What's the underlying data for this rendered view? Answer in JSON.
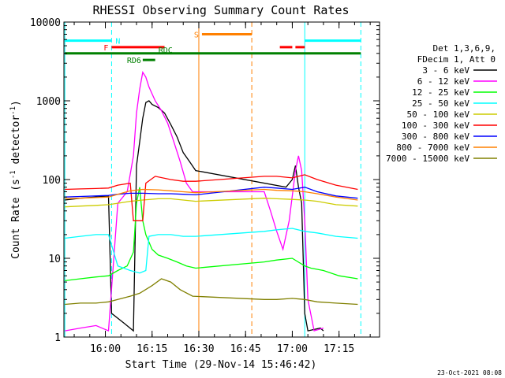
{
  "title": "RHESSI Observing Summary Count Rates",
  "footer_date": "23-Oct-2021 08:08",
  "chart_data": {
    "type": "line",
    "title": "RHESSI Observing Summary Count Rates",
    "xlabel": "Start Time (29-Nov-14 15:46:42)",
    "ylabel": "Count Rate (s",
    "ylabel_sup": "-1",
    "ylabel_tail": " detector",
    "ylabel_close": ")",
    "yscale": "log",
    "ylim": [
      1,
      10000
    ],
    "xlim": [
      "15:46:42",
      "17:28:00"
    ],
    "xticks": [
      "16:00",
      "16:15",
      "16:30",
      "16:45",
      "17:00",
      "17:15"
    ],
    "yticks": [
      "1",
      "10",
      "100",
      "1000",
      "10000"
    ],
    "legend_header": [
      "Det 1,3,6,9,",
      "FDecim 1, Att 0"
    ],
    "legend_position": "right",
    "series": [
      {
        "name": "3 - 6 keV",
        "color": "#000000",
        "points": [
          [
            "15:47",
            55
          ],
          [
            "15:52",
            58
          ],
          [
            "15:57",
            60
          ],
          [
            "16:01",
            62
          ],
          [
            "16:02",
            2
          ],
          [
            "16:06",
            1.5
          ],
          [
            "16:09",
            1.2
          ],
          [
            "16:10",
            150
          ],
          [
            "16:11",
            300
          ],
          [
            "16:12",
            600
          ],
          [
            "16:13",
            950
          ],
          [
            "16:14",
            1000
          ],
          [
            "16:15",
            900
          ],
          [
            "16:17",
            820
          ],
          [
            "16:19",
            700
          ],
          [
            "16:21",
            500
          ],
          [
            "16:23",
            350
          ],
          [
            "16:25",
            220
          ],
          [
            "16:27",
            170
          ],
          [
            "16:29",
            130
          ],
          [
            "16:58",
            80
          ],
          [
            "17:00",
            100
          ],
          [
            "17:01",
            150
          ],
          [
            "17:02",
            80
          ],
          [
            "17:03",
            50
          ],
          [
            "17:04",
            2
          ],
          [
            "17:05",
            1.2
          ],
          [
            "17:09",
            1.3
          ],
          [
            "17:10",
            1.2
          ]
        ]
      },
      {
        "name": "6 - 12 keV",
        "color": "#ff00ff",
        "points": [
          [
            "15:47",
            1.2
          ],
          [
            "15:52",
            1.3
          ],
          [
            "15:57",
            1.4
          ],
          [
            "16:01",
            1.2
          ],
          [
            "16:04",
            50
          ],
          [
            "16:07",
            70
          ],
          [
            "16:09",
            200
          ],
          [
            "16:10",
            700
          ],
          [
            "16:11",
            1400
          ],
          [
            "16:12",
            2300
          ],
          [
            "16:13",
            2000
          ],
          [
            "16:14",
            1500
          ],
          [
            "16:16",
            1000
          ],
          [
            "16:18",
            750
          ],
          [
            "16:20",
            520
          ],
          [
            "16:22",
            300
          ],
          [
            "16:24",
            170
          ],
          [
            "16:26",
            90
          ],
          [
            "16:28",
            70
          ],
          [
            "16:51",
            70
          ],
          [
            "16:53",
            40
          ],
          [
            "16:55",
            22
          ],
          [
            "16:57",
            13
          ],
          [
            "16:59",
            30
          ],
          [
            "17:01",
            130
          ],
          [
            "17:02",
            200
          ],
          [
            "17:03",
            130
          ],
          [
            "17:04",
            30
          ],
          [
            "17:05",
            3
          ],
          [
            "17:07",
            1.2
          ],
          [
            "17:10",
            1.3
          ]
        ]
      },
      {
        "name": "12 - 25 keV",
        "color": "#00ff00",
        "points": [
          [
            "15:47",
            5.2
          ],
          [
            "15:52",
            5.5
          ],
          [
            "15:57",
            5.8
          ],
          [
            "16:01",
            6
          ],
          [
            "16:04",
            7
          ],
          [
            "16:07",
            8
          ],
          [
            "16:09",
            12
          ],
          [
            "16:10",
            50
          ],
          [
            "16:11",
            80
          ],
          [
            "16:12",
            30
          ],
          [
            "16:13",
            20
          ],
          [
            "16:15",
            13
          ],
          [
            "16:17",
            11
          ],
          [
            "16:20",
            10
          ],
          [
            "16:23",
            9
          ],
          [
            "16:26",
            8
          ],
          [
            "16:29",
            7.5
          ],
          [
            "16:51",
            9
          ],
          [
            "16:55",
            9.5
          ],
          [
            "17:00",
            10
          ],
          [
            "17:04",
            8
          ],
          [
            "17:06",
            7.5
          ],
          [
            "17:10",
            7
          ],
          [
            "17:15",
            6
          ],
          [
            "17:21",
            5.5
          ]
        ]
      },
      {
        "name": "25 - 50 keV",
        "color": "#00ffff",
        "points": [
          [
            "15:47",
            18
          ],
          [
            "15:52",
            19
          ],
          [
            "15:57",
            20
          ],
          [
            "16:01",
            20
          ],
          [
            "16:04",
            8
          ],
          [
            "16:08",
            7
          ],
          [
            "16:11",
            6.5
          ],
          [
            "16:13",
            7
          ],
          [
            "16:14",
            19
          ],
          [
            "16:17",
            20
          ],
          [
            "16:21",
            20
          ],
          [
            "16:25",
            19
          ],
          [
            "16:29",
            19
          ],
          [
            "16:51",
            22
          ],
          [
            "16:55",
            23
          ],
          [
            "17:00",
            24
          ],
          [
            "17:04",
            22
          ],
          [
            "17:08",
            21
          ],
          [
            "17:14",
            19
          ],
          [
            "17:21",
            18
          ]
        ]
      },
      {
        "name": "50 - 100 keV",
        "color": "#cccc00",
        "points": [
          [
            "15:47",
            45
          ],
          [
            "15:52",
            46
          ],
          [
            "15:57",
            47
          ],
          [
            "16:01",
            48
          ],
          [
            "16:04",
            50
          ],
          [
            "16:08",
            53
          ],
          [
            "16:12",
            55
          ],
          [
            "16:17",
            57
          ],
          [
            "16:21",
            57
          ],
          [
            "16:25",
            55
          ],
          [
            "16:29",
            53
          ],
          [
            "16:51",
            58
          ],
          [
            "16:55",
            57
          ],
          [
            "17:00",
            56
          ],
          [
            "17:04",
            55
          ],
          [
            "17:08",
            53
          ],
          [
            "17:14",
            48
          ],
          [
            "17:21",
            46
          ]
        ]
      },
      {
        "name": "100 - 300 keV",
        "color": "#ff0000",
        "points": [
          [
            "15:47",
            75
          ],
          [
            "15:52",
            76
          ],
          [
            "15:57",
            77
          ],
          [
            "16:01",
            78
          ],
          [
            "16:04",
            85
          ],
          [
            "16:08",
            90
          ],
          [
            "16:09",
            30
          ],
          [
            "16:12",
            30
          ],
          [
            "16:13",
            90
          ],
          [
            "16:16",
            110
          ],
          [
            "16:21",
            100
          ],
          [
            "16:25",
            95
          ],
          [
            "16:29",
            95
          ],
          [
            "16:51",
            110
          ],
          [
            "16:55",
            110
          ],
          [
            "17:00",
            105
          ],
          [
            "17:04",
            115
          ],
          [
            "17:08",
            100
          ],
          [
            "17:14",
            85
          ],
          [
            "17:21",
            75
          ]
        ]
      },
      {
        "name": "300 - 800 keV",
        "color": "#0000ff",
        "points": [
          [
            "15:47",
            60
          ],
          [
            "15:52",
            61
          ],
          [
            "15:57",
            62
          ],
          [
            "16:01",
            63
          ],
          [
            "16:04",
            65
          ],
          [
            "16:08",
            67
          ],
          [
            "16:12",
            67
          ],
          [
            "16:17",
            66
          ],
          [
            "16:21",
            66
          ],
          [
            "16:25",
            65
          ],
          [
            "16:29",
            64
          ],
          [
            "16:51",
            80
          ],
          [
            "16:55",
            78
          ],
          [
            "17:00",
            75
          ],
          [
            "17:04",
            80
          ],
          [
            "17:08",
            70
          ],
          [
            "17:14",
            62
          ],
          [
            "17:21",
            58
          ]
        ]
      },
      {
        "name": "800 - 7000 keV",
        "color": "#ff8000",
        "points": [
          [
            "15:47",
            57
          ],
          [
            "15:52",
            58
          ],
          [
            "15:57",
            59
          ],
          [
            "16:01",
            60
          ],
          [
            "16:04",
            65
          ],
          [
            "16:08",
            72
          ],
          [
            "16:12",
            75
          ],
          [
            "16:17",
            74
          ],
          [
            "16:21",
            72
          ],
          [
            "16:25",
            70
          ],
          [
            "16:29",
            68
          ],
          [
            "16:51",
            75
          ],
          [
            "16:55",
            73
          ],
          [
            "17:00",
            72
          ],
          [
            "17:04",
            70
          ],
          [
            "17:08",
            66
          ],
          [
            "17:14",
            60
          ],
          [
            "17:21",
            55
          ]
        ]
      },
      {
        "name": "7000 - 15000 keV",
        "color": "#808000",
        "points": [
          [
            "15:47",
            2.6
          ],
          [
            "15:52",
            2.7
          ],
          [
            "15:57",
            2.7
          ],
          [
            "16:01",
            2.8
          ],
          [
            "16:04",
            3
          ],
          [
            "16:08",
            3.3
          ],
          [
            "16:11",
            3.6
          ],
          [
            "16:15",
            4.5
          ],
          [
            "16:18",
            5.5
          ],
          [
            "16:21",
            5
          ],
          [
            "16:24",
            4
          ],
          [
            "16:28",
            3.3
          ],
          [
            "16:51",
            3
          ],
          [
            "16:55",
            3
          ],
          [
            "17:00",
            3.1
          ],
          [
            "17:04",
            3
          ],
          [
            "17:08",
            2.8
          ],
          [
            "17:14",
            2.7
          ],
          [
            "17:21",
            2.6
          ]
        ]
      }
    ],
    "flags": [
      {
        "label": "N",
        "color": "#00ffff",
        "level": 5800,
        "segments": [
          [
            "15:47",
            "16:02"
          ],
          [
            "17:04",
            "17:22"
          ]
        ]
      },
      {
        "label": "S",
        "color": "#ff8000",
        "level": 7000,
        "segments": [
          [
            "16:31",
            "16:47"
          ]
        ]
      },
      {
        "label": "F",
        "color": "#ff0000",
        "level": 4800,
        "segments": [
          [
            "16:02",
            "16:19"
          ],
          [
            "16:56",
            "17:00"
          ],
          [
            "17:01",
            "17:04"
          ]
        ]
      },
      {
        "label": "RDC",
        "color": "#008000",
        "level": 4000,
        "segments": [
          [
            "15:47",
            "17:22"
          ]
        ]
      },
      {
        "label": "RD6",
        "color": "#008000",
        "level": 3300,
        "segments": [
          [
            "16:12",
            "16:16"
          ]
        ]
      }
    ],
    "vlines": [
      {
        "time": "16:02",
        "color": "#00ffff",
        "style": "dashed"
      },
      {
        "time": "16:30",
        "color": "#ff8000",
        "style": "solid"
      },
      {
        "time": "16:47",
        "color": "#ff8000",
        "style": "dashed"
      },
      {
        "time": "17:04",
        "color": "#00ffff",
        "style": "solid"
      },
      {
        "time": "17:22",
        "color": "#00ffff",
        "style": "dashed"
      },
      {
        "time": "15:47",
        "color": "#00ffff",
        "style": "solid"
      }
    ]
  }
}
